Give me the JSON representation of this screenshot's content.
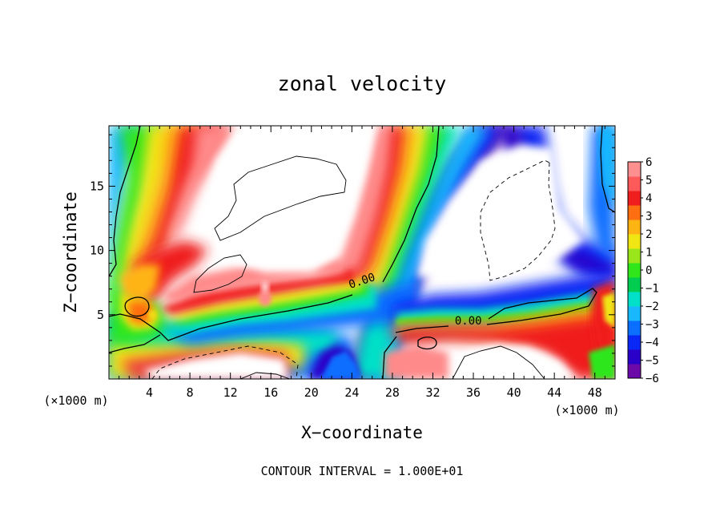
{
  "chart_data": {
    "type": "heatmap",
    "title": "zonal velocity",
    "xlabel": "X−coordinate",
    "ylabel": "Z−coordinate",
    "x_unit_left": "(×1000 m)",
    "x_unit_right": "(×1000 m)",
    "footer": "CONTOUR INTERVAL = 1.000E+01",
    "xlim": [
      0,
      50
    ],
    "ylim": [
      0,
      19.7
    ],
    "x_ticks": [
      4,
      8,
      12,
      16,
      20,
      24,
      28,
      32,
      36,
      40,
      44,
      48
    ],
    "y_ticks": [
      5,
      10,
      15
    ],
    "colorbar": {
      "levels": [
        "6",
        "5",
        "4",
        "3",
        "2",
        "1",
        "0",
        "−1",
        "−2",
        "−3",
        "−4",
        "−5",
        "−6"
      ],
      "colors": [
        "#6b0aa8",
        "#2a00c8",
        "#0a28f5",
        "#0a6eff",
        "#18b8ff",
        "#00e0c8",
        "#00cc50",
        "#2ee61a",
        "#9ae61a",
        "#f0e614",
        "#ffb414",
        "#ff6e10",
        "#f01e1e",
        "#ff5a5a",
        "#ff9090"
      ]
    },
    "contour_labels": [
      {
        "text": "0.00",
        "x": 25.0,
        "y": 7.6
      },
      {
        "text": "0.00",
        "x": 35.5,
        "y": 4.5
      }
    ]
  }
}
